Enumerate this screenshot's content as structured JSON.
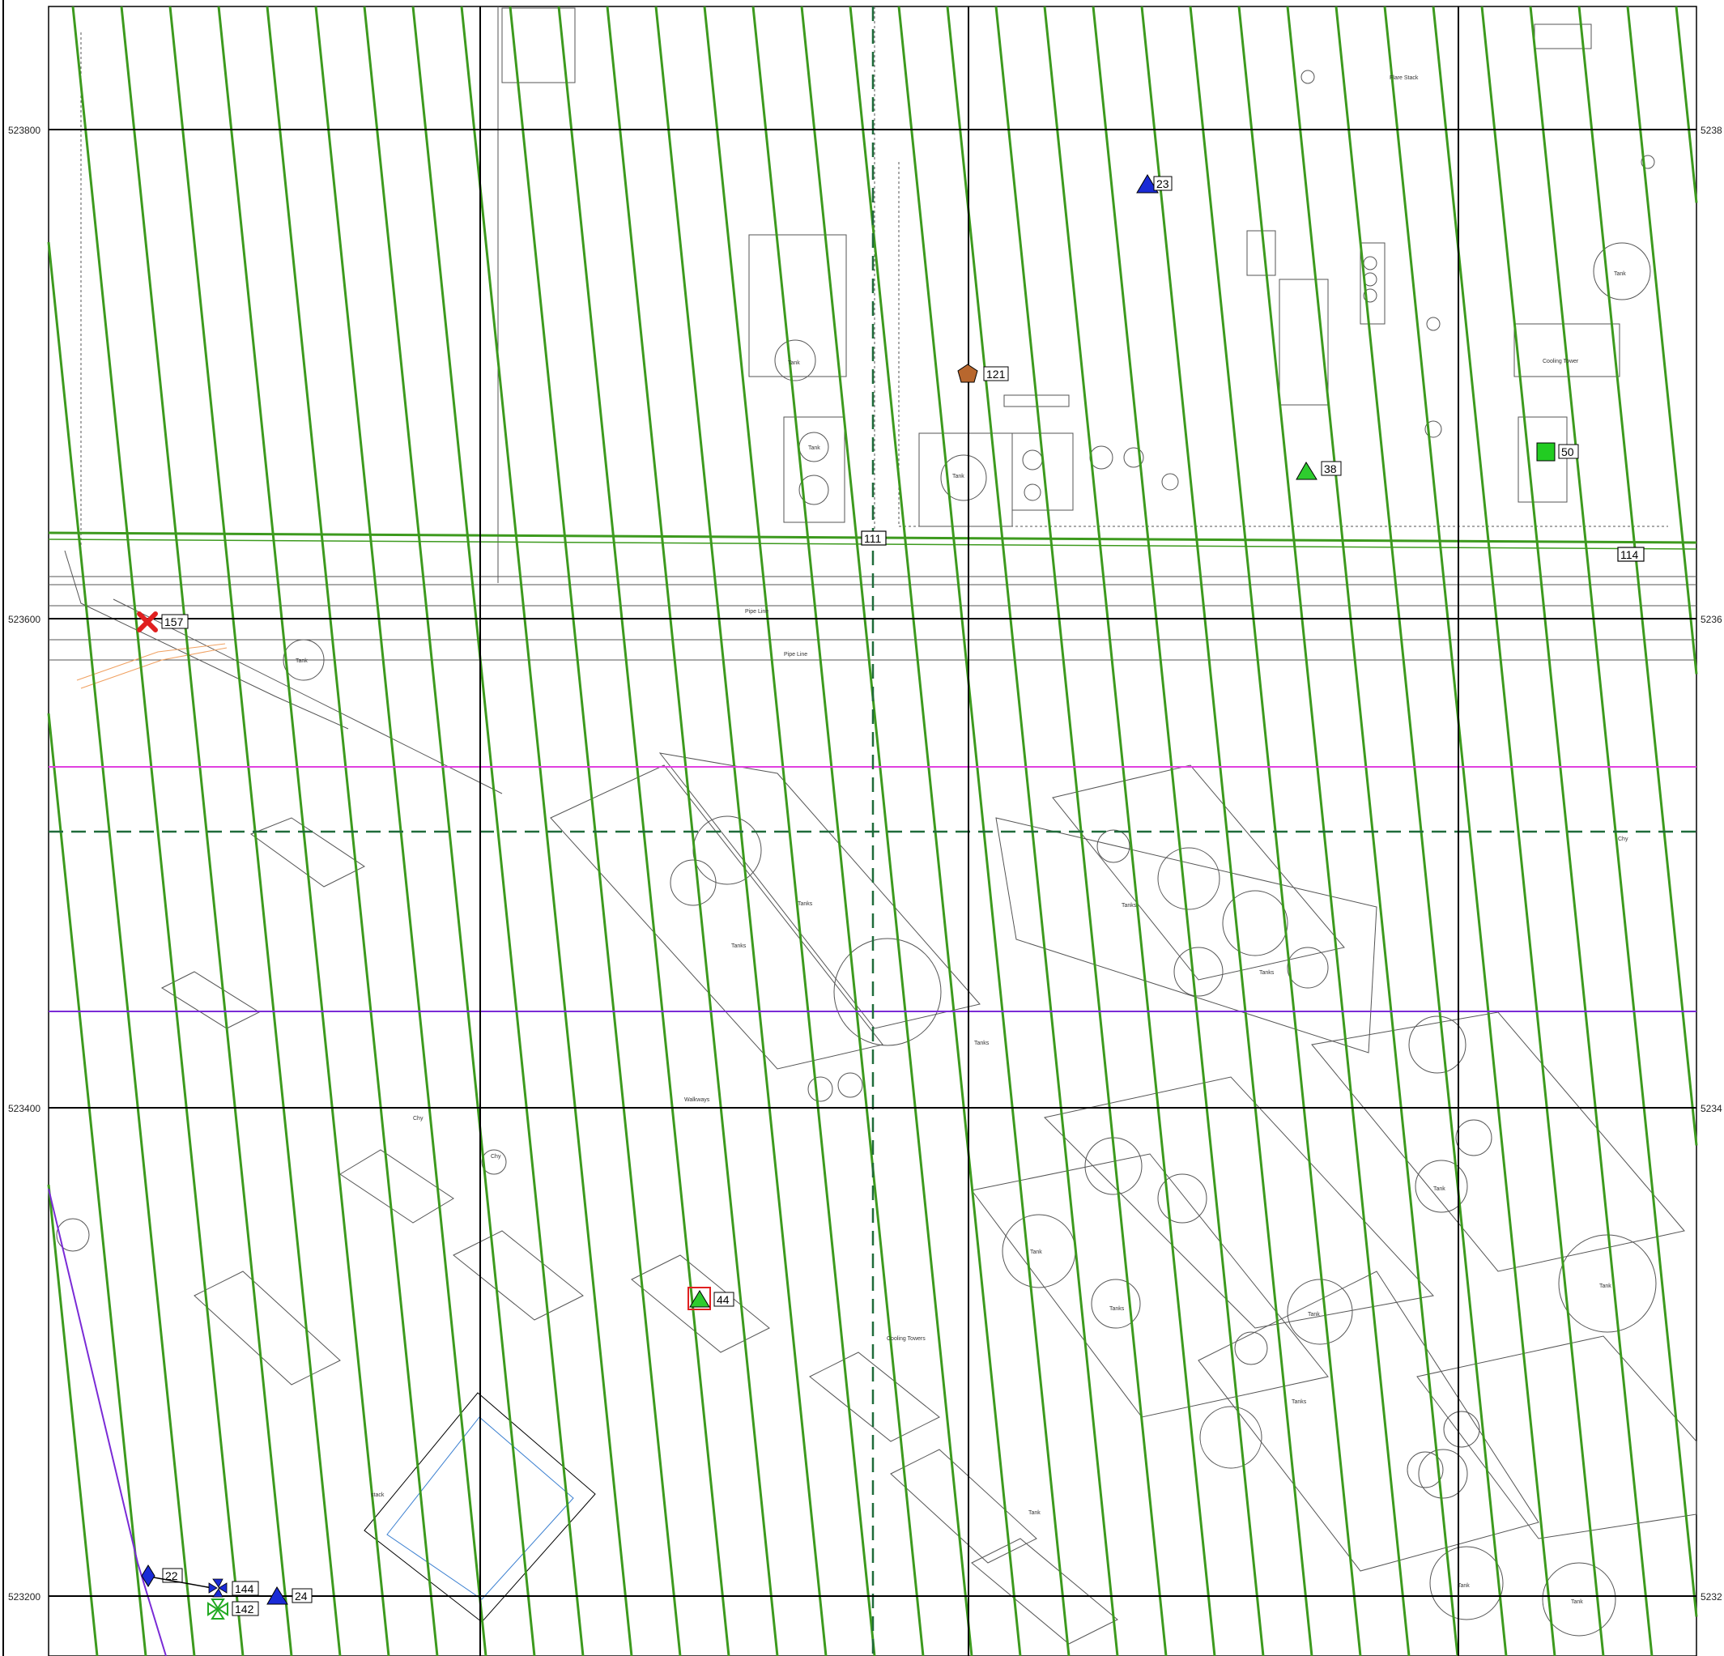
{
  "coordinates": {
    "northings": [
      "523800",
      "523600",
      "523400",
      "523200"
    ],
    "right_labels": [
      "5238",
      "5236",
      "5234",
      "5232"
    ]
  },
  "line_labels": [
    "111",
    "114"
  ],
  "markers": [
    {
      "id": "23",
      "symbol": "triangle",
      "color": "#1a2bd6"
    },
    {
      "id": "121",
      "symbol": "pentagon",
      "color": "#b8672e"
    },
    {
      "id": "38",
      "symbol": "triangle",
      "color": "#2ecc2e"
    },
    {
      "id": "50",
      "symbol": "square",
      "color": "#22cc22"
    },
    {
      "id": "157",
      "symbol": "cross",
      "color": "#e02020"
    },
    {
      "id": "44",
      "symbol": "triangle-boxed",
      "color": "#2ecc2e"
    },
    {
      "id": "22",
      "symbol": "diamond",
      "color": "#1a2bd6"
    },
    {
      "id": "144",
      "symbol": "maltese",
      "color": "#1a2bd6"
    },
    {
      "id": "142",
      "symbol": "maltese-green",
      "color": "#22aa22"
    },
    {
      "id": "24",
      "symbol": "triangle",
      "color": "#1a2bd6"
    }
  ],
  "map_labels": {
    "pipe_line_1": "Pipe Line",
    "pipe_line_2": "Pipe Line",
    "tank_a": "Tank",
    "tank_b": "Tank",
    "tank_c": "Tank",
    "tank_d": "Tank",
    "tank_e": "Tank",
    "tank_f": "Tank",
    "tank_g": "Tank",
    "tank_h": "Tank",
    "tank_i": "Tank",
    "tank_j": "Tank",
    "tank_k": "Tank",
    "tank_l": "Tank",
    "tanks_a": "Tanks",
    "tanks_b": "Tanks",
    "tanks_c": "Tanks",
    "tanks_d": "Tanks",
    "tanks_e": "Tanks",
    "tanks_f": "Tanks",
    "tanks_g": "Tanks",
    "cooling_tower": "Cooling Tower",
    "cooling_towers": "Cooling Towers",
    "flare_stack": "Flare Stack",
    "walkways": "Walkways",
    "chy_a": "Chy",
    "chy_b": "Chy",
    "chy_c": "Chy",
    "stack": "stack"
  },
  "colors": {
    "hatch": "#3d9a1e",
    "grid": "#000000",
    "magenta": "#e040e0",
    "purple": "#7a2bd6",
    "dashed_green": "#1f6b3a",
    "blue_outline": "#3a7fd0",
    "orange": "#f0a060"
  }
}
